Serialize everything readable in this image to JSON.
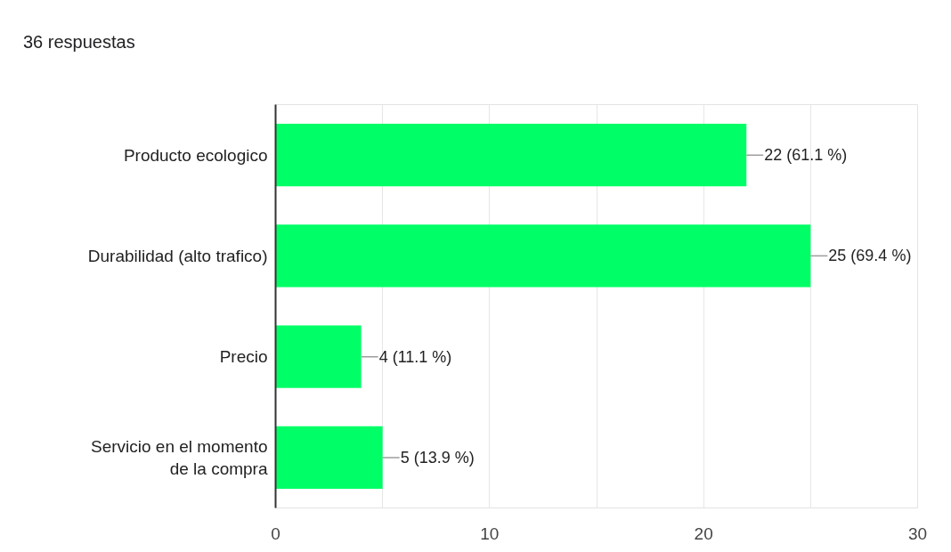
{
  "chart_data": {
    "type": "bar",
    "orientation": "horizontal",
    "title": "36 respuestas",
    "categories": [
      "Producto ecologico",
      "Durabilidad (alto trafico)",
      "Precio",
      "Servicio en el momento de la compra"
    ],
    "values": [
      22,
      25,
      4,
      5
    ],
    "color": "#00ff66",
    "value_labels": [
      "22 (61.1 %)",
      "25 (69.4 %)",
      "4 (11.1 %)",
      "5 (13.9 %)"
    ],
    "xlim": [
      0,
      30
    ],
    "xticks": [
      0,
      {
        "value": 5,
        "label": null
      },
      10,
      {
        "value": 15,
        "label": null
      },
      20,
      {
        "value": 25,
        "label": null
      },
      30
    ],
    "grid": "x"
  }
}
